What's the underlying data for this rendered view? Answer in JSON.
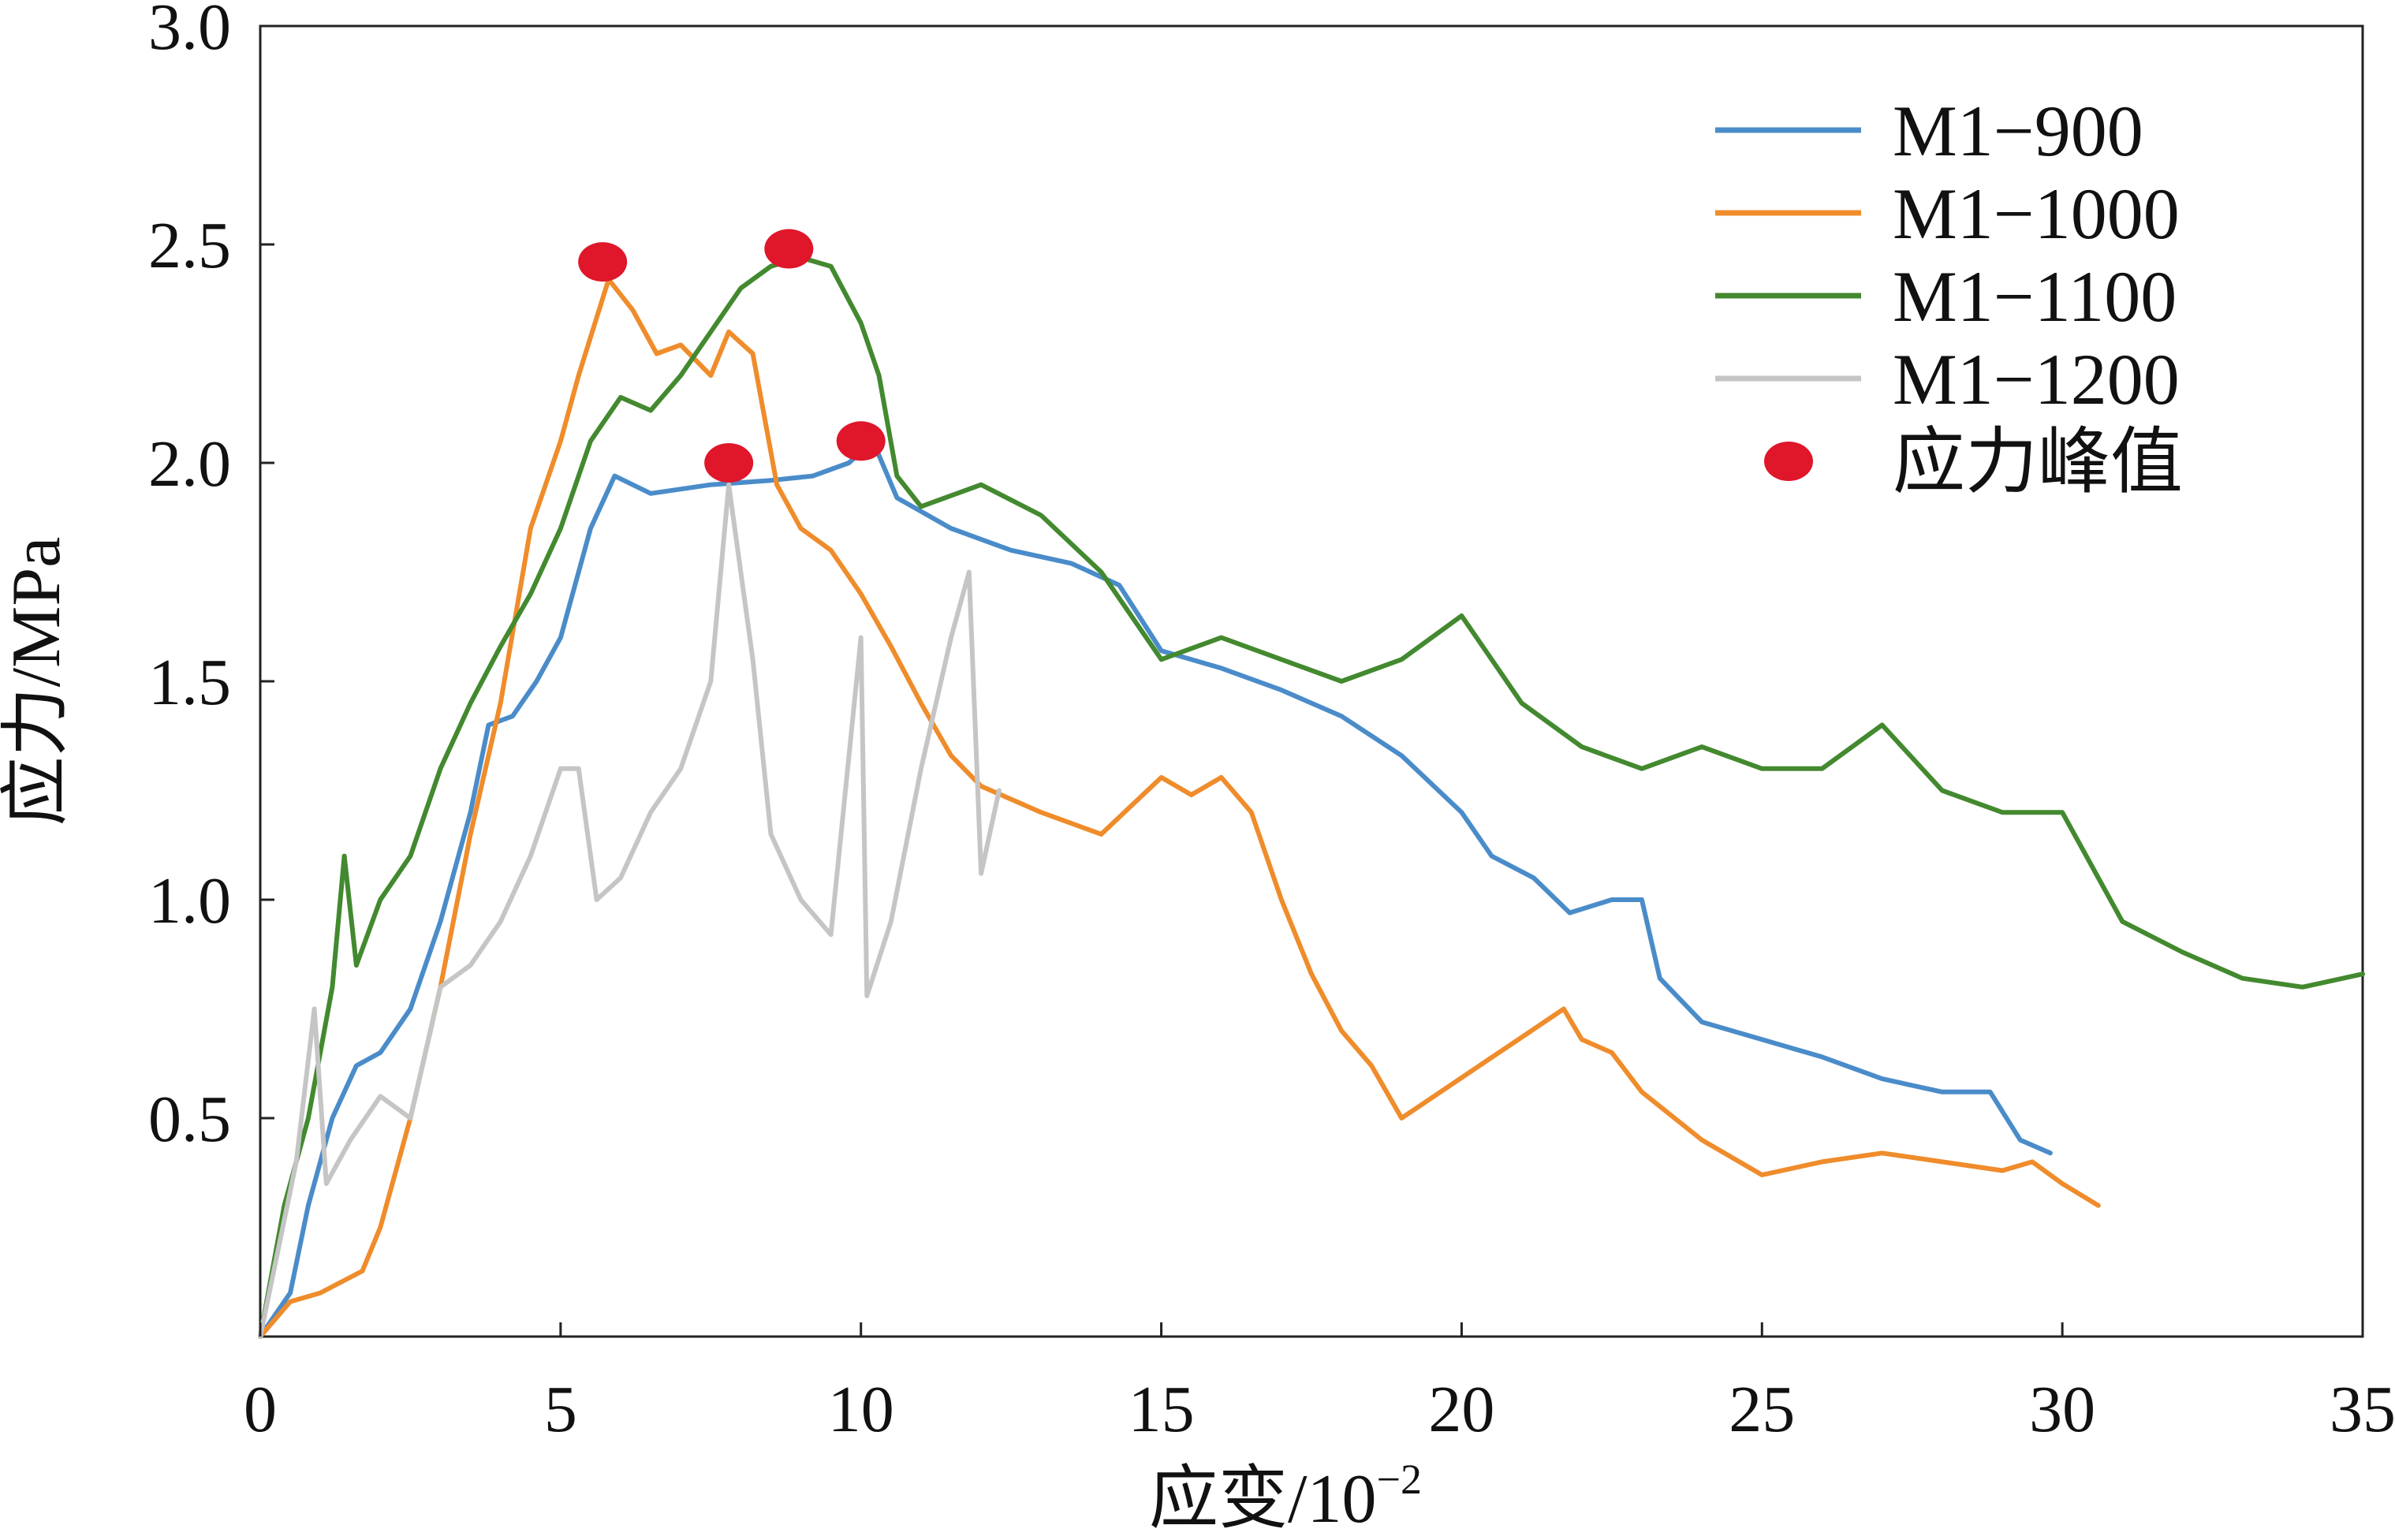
{
  "chart_data": {
    "type": "line",
    "xlabel": "应变/10",
    "xlabel_exponent": "−2",
    "ylabel": "应力/MPa",
    "xlim": [
      0,
      35
    ],
    "ylim": [
      0,
      3.0
    ],
    "xticks": [
      0,
      5,
      10,
      15,
      20,
      25,
      30,
      35
    ],
    "xtick_labels": [
      "0",
      "5",
      "10",
      "15",
      "20",
      "25",
      "30",
      "35"
    ],
    "yticks": [
      0.5,
      1.0,
      1.5,
      2.0,
      2.5,
      3.0
    ],
    "ytick_labels": [
      "0.5",
      "1.0",
      "1.5",
      "2.0",
      "2.5",
      "3.0"
    ],
    "grid": false,
    "legend_position": "top-right",
    "series": [
      {
        "name": "M1−900",
        "color": "#4a8cc9",
        "points": [
          [
            0,
            0
          ],
          [
            0.5,
            0.1
          ],
          [
            0.8,
            0.3
          ],
          [
            1.2,
            0.5
          ],
          [
            1.6,
            0.62
          ],
          [
            2,
            0.65
          ],
          [
            2.5,
            0.75
          ],
          [
            3,
            0.95
          ],
          [
            3.5,
            1.2
          ],
          [
            3.8,
            1.4
          ],
          [
            4.2,
            1.42
          ],
          [
            4.6,
            1.5
          ],
          [
            5,
            1.6
          ],
          [
            5.5,
            1.85
          ],
          [
            5.9,
            1.97
          ],
          [
            6.5,
            1.93
          ],
          [
            7.5,
            1.95
          ],
          [
            8.5,
            1.96
          ],
          [
            9.2,
            1.97
          ],
          [
            9.8,
            2.0
          ],
          [
            10.2,
            2.05
          ],
          [
            10.6,
            1.92
          ],
          [
            11.5,
            1.85
          ],
          [
            12.5,
            1.8
          ],
          [
            13.5,
            1.77
          ],
          [
            14.3,
            1.72
          ],
          [
            15,
            1.57
          ],
          [
            16,
            1.53
          ],
          [
            17,
            1.48
          ],
          [
            18,
            1.42
          ],
          [
            19,
            1.33
          ],
          [
            20,
            1.2
          ],
          [
            20.5,
            1.1
          ],
          [
            21.2,
            1.05
          ],
          [
            21.8,
            0.97
          ],
          [
            22.5,
            1.0
          ],
          [
            23,
            1.0
          ],
          [
            23.3,
            0.82
          ],
          [
            24,
            0.72
          ],
          [
            25,
            0.68
          ],
          [
            26,
            0.64
          ],
          [
            27,
            0.59
          ],
          [
            28,
            0.56
          ],
          [
            28.8,
            0.56
          ],
          [
            29.3,
            0.45
          ],
          [
            29.8,
            0.42
          ]
        ]
      },
      {
        "name": "M1−1000",
        "color": "#ef8c2b",
        "points": [
          [
            0,
            0
          ],
          [
            0.5,
            0.08
          ],
          [
            1,
            0.1
          ],
          [
            1.7,
            0.15
          ],
          [
            2,
            0.25
          ],
          [
            2.5,
            0.5
          ],
          [
            3,
            0.8
          ],
          [
            3.5,
            1.15
          ],
          [
            4,
            1.45
          ],
          [
            4.5,
            1.85
          ],
          [
            5,
            2.05
          ],
          [
            5.3,
            2.2
          ],
          [
            5.8,
            2.42
          ],
          [
            6.2,
            2.35
          ],
          [
            6.6,
            2.25
          ],
          [
            7,
            2.27
          ],
          [
            7.5,
            2.2
          ],
          [
            7.8,
            2.3
          ],
          [
            8.2,
            2.25
          ],
          [
            8.6,
            1.95
          ],
          [
            9,
            1.85
          ],
          [
            9.5,
            1.8
          ],
          [
            10,
            1.7
          ],
          [
            10.5,
            1.58
          ],
          [
            11,
            1.45
          ],
          [
            11.5,
            1.33
          ],
          [
            12,
            1.26
          ],
          [
            13,
            1.2
          ],
          [
            14,
            1.15
          ],
          [
            15,
            1.28
          ],
          [
            15.5,
            1.24
          ],
          [
            16,
            1.28
          ],
          [
            16.5,
            1.2
          ],
          [
            17,
            1.0
          ],
          [
            17.5,
            0.83
          ],
          [
            18,
            0.7
          ],
          [
            18.5,
            0.62
          ],
          [
            19,
            0.5
          ],
          [
            21.7,
            0.75
          ],
          [
            22,
            0.68
          ],
          [
            22.5,
            0.65
          ],
          [
            23,
            0.56
          ],
          [
            24,
            0.45
          ],
          [
            25,
            0.37
          ],
          [
            26,
            0.4
          ],
          [
            27,
            0.42
          ],
          [
            28,
            0.4
          ],
          [
            29,
            0.38
          ],
          [
            29.5,
            0.4
          ],
          [
            30,
            0.35
          ],
          [
            30.6,
            0.3
          ]
        ]
      },
      {
        "name": "M1−1100",
        "color": "#43892f",
        "points": [
          [
            0,
            0
          ],
          [
            0.4,
            0.3
          ],
          [
            0.8,
            0.5
          ],
          [
            1.2,
            0.8
          ],
          [
            1.4,
            1.1
          ],
          [
            1.6,
            0.85
          ],
          [
            2,
            1.0
          ],
          [
            2.5,
            1.1
          ],
          [
            3,
            1.3
          ],
          [
            3.5,
            1.45
          ],
          [
            4,
            1.58
          ],
          [
            4.5,
            1.7
          ],
          [
            5,
            1.85
          ],
          [
            5.5,
            2.05
          ],
          [
            6,
            2.15
          ],
          [
            6.5,
            2.12
          ],
          [
            7,
            2.2
          ],
          [
            7.5,
            2.3
          ],
          [
            8,
            2.4
          ],
          [
            8.5,
            2.45
          ],
          [
            9,
            2.47
          ],
          [
            9.5,
            2.45
          ],
          [
            10,
            2.32
          ],
          [
            10.3,
            2.2
          ],
          [
            10.6,
            1.97
          ],
          [
            11,
            1.9
          ],
          [
            12,
            1.95
          ],
          [
            13,
            1.88
          ],
          [
            14,
            1.75
          ],
          [
            15,
            1.55
          ],
          [
            16,
            1.6
          ],
          [
            17,
            1.55
          ],
          [
            18,
            1.5
          ],
          [
            19,
            1.55
          ],
          [
            20,
            1.65
          ],
          [
            21,
            1.45
          ],
          [
            22,
            1.35
          ],
          [
            23,
            1.3
          ],
          [
            24,
            1.35
          ],
          [
            25,
            1.3
          ],
          [
            26,
            1.3
          ],
          [
            27,
            1.4
          ],
          [
            28,
            1.25
          ],
          [
            29,
            1.2
          ],
          [
            30,
            1.2
          ],
          [
            31,
            0.95
          ],
          [
            32,
            0.88
          ],
          [
            33,
            0.82
          ],
          [
            34,
            0.8
          ],
          [
            35,
            0.83
          ]
        ]
      },
      {
        "name": "M1−1200",
        "color": "#c5c5c5",
        "points": [
          [
            0,
            0
          ],
          [
            0.6,
            0.4
          ],
          [
            0.9,
            0.75
          ],
          [
            1.1,
            0.35
          ],
          [
            1.5,
            0.45
          ],
          [
            2,
            0.55
          ],
          [
            2.5,
            0.5
          ],
          [
            3,
            0.8
          ],
          [
            3.5,
            0.85
          ],
          [
            4,
            0.95
          ],
          [
            4.5,
            1.1
          ],
          [
            5,
            1.3
          ],
          [
            5.3,
            1.3
          ],
          [
            5.6,
            1.0
          ],
          [
            6,
            1.05
          ],
          [
            6.5,
            1.2
          ],
          [
            7,
            1.3
          ],
          [
            7.5,
            1.5
          ],
          [
            7.8,
            1.95
          ],
          [
            8.2,
            1.55
          ],
          [
            8.5,
            1.15
          ],
          [
            9,
            1.0
          ],
          [
            9.5,
            0.92
          ],
          [
            10,
            1.6
          ],
          [
            10.1,
            0.78
          ],
          [
            10.5,
            0.95
          ],
          [
            11,
            1.3
          ],
          [
            11.5,
            1.6
          ],
          [
            11.8,
            1.75
          ],
          [
            12,
            1.06
          ],
          [
            12.3,
            1.25
          ]
        ]
      }
    ],
    "peaks": {
      "name": "应力峰值",
      "color": "#e0162b",
      "points": [
        [
          5.7,
          2.46
        ],
        [
          8.8,
          2.49
        ],
        [
          7.8,
          2.0
        ],
        [
          10.0,
          2.05
        ]
      ]
    }
  }
}
